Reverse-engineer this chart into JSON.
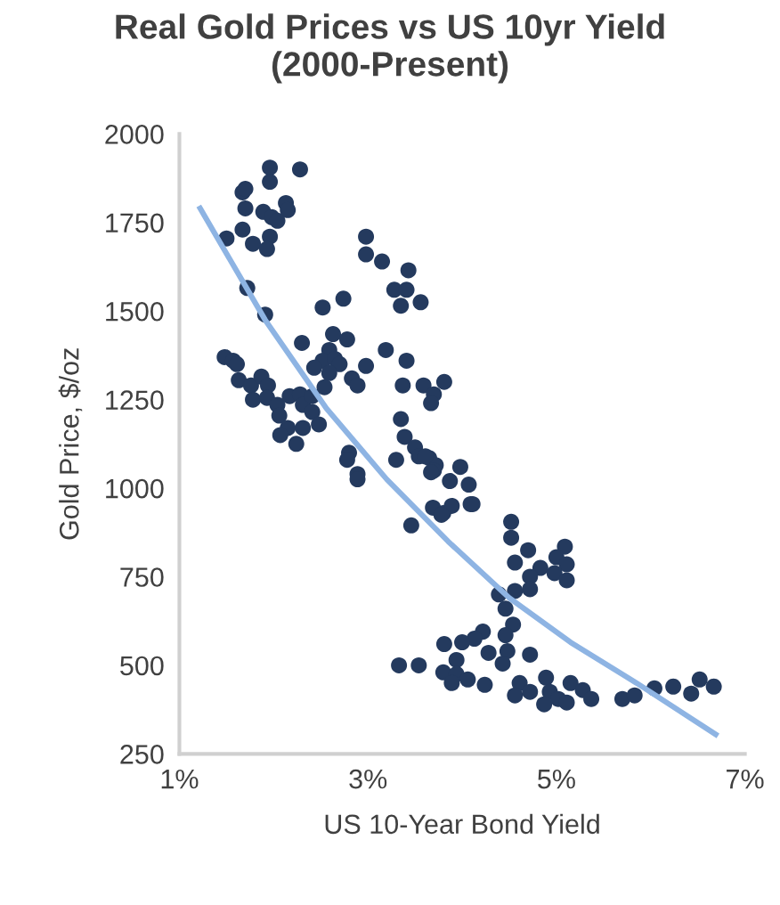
{
  "chart_data": {
    "type": "scatter",
    "title": "Real Gold Prices vs US 10yr Yield\n(2000-Present)",
    "xlabel": "US 10-Year Bond Yield",
    "ylabel": "Gold Price, $/oz",
    "xlim": [
      1,
      7
    ],
    "xticks": [
      {
        "value": 1,
        "label": "1%"
      },
      {
        "value": 3,
        "label": "3%"
      },
      {
        "value": 5,
        "label": "5%"
      },
      {
        "value": 7,
        "label": "7%"
      }
    ],
    "ylim": [
      250,
      2000
    ],
    "yticks": [
      250,
      500,
      750,
      1000,
      1250,
      1500,
      1750,
      2000
    ],
    "grid": false,
    "series": [
      {
        "color": "#243a5e",
        "marker": "circle",
        "x": [
          1.96,
          2.28,
          1.96,
          1.67,
          1.7,
          1.7,
          1.89,
          1.98,
          2.13,
          2.15,
          2.04,
          1.67,
          1.5,
          1.78,
          1.96,
          1.93,
          1.72,
          1.91,
          2.52,
          2.74,
          2.98,
          2.98,
          3.15,
          3.43,
          3.28,
          3.41,
          3.35,
          3.56,
          1.48,
          1.57,
          1.61,
          1.63,
          1.76,
          1.87,
          1.94,
          1.78,
          1.93,
          2.04,
          2.06,
          2.17,
          2.28,
          2.31,
          2.41,
          2.41,
          2.15,
          2.07,
          2.31,
          2.24,
          2.48,
          2.3,
          2.63,
          2.78,
          2.59,
          2.52,
          2.43,
          2.65,
          2.7,
          2.59,
          2.54,
          2.83,
          2.89,
          2.98,
          3.19,
          3.41,
          3.37,
          3.59,
          3.81,
          3.7,
          3.35,
          3.39,
          3.5,
          3.54,
          3.65,
          3.72,
          3.7,
          3.98,
          3.3,
          2.8,
          2.78,
          2.89,
          3.67,
          3.61,
          3.67,
          3.87,
          4.07,
          3.69,
          3.8,
          3.89,
          4.11,
          4.52,
          2.89,
          4.09,
          3.78,
          3.46,
          4.52,
          4.7,
          4.56,
          5.09,
          5.0,
          5.11,
          4.83,
          4.98,
          5.11,
          4.72,
          4.72,
          4.56,
          4.39,
          4.46,
          4.54,
          4.46,
          4.48,
          4.22,
          4.13,
          4.0,
          3.81,
          4.28,
          4.72,
          3.94,
          3.8,
          3.94,
          3.89,
          4.06,
          3.33,
          3.54,
          4.24,
          4.43,
          4.61,
          4.56,
          4.72,
          4.89,
          4.93,
          4.87,
          5.02,
          5.15,
          5.11,
          5.28,
          5.37,
          5.7,
          5.83,
          6.04,
          6.24,
          6.43,
          6.52,
          6.67
        ],
        "values": [
          1905,
          1900,
          1865,
          1835,
          1845,
          1790,
          1780,
          1765,
          1805,
          1785,
          1755,
          1730,
          1705,
          1690,
          1710,
          1675,
          1565,
          1490,
          1510,
          1535,
          1710,
          1660,
          1640,
          1615,
          1560,
          1560,
          1515,
          1525,
          1370,
          1360,
          1350,
          1305,
          1290,
          1315,
          1290,
          1250,
          1255,
          1235,
          1205,
          1260,
          1265,
          1235,
          1215,
          1260,
          1170,
          1150,
          1170,
          1125,
          1180,
          1410,
          1435,
          1420,
          1390,
          1360,
          1340,
          1365,
          1350,
          1325,
          1285,
          1310,
          1290,
          1345,
          1390,
          1360,
          1290,
          1290,
          1300,
          1265,
          1195,
          1145,
          1115,
          1090,
          1085,
          1065,
          1050,
          1060,
          1080,
          1100,
          1080,
          1040,
          1240,
          1090,
          1045,
          1020,
          1010,
          945,
          930,
          950,
          955,
          905,
          1025,
          955,
          925,
          895,
          860,
          825,
          790,
          835,
          805,
          785,
          775,
          760,
          740,
          750,
          715,
          710,
          700,
          660,
          615,
          585,
          540,
          595,
          575,
          565,
          560,
          535,
          530,
          515,
          480,
          475,
          450,
          460,
          500,
          500,
          445,
          505,
          450,
          415,
          425,
          465,
          425,
          390,
          405,
          450,
          395,
          430,
          405,
          405,
          415,
          435,
          440,
          420,
          460,
          440
        ]
      },
      {
        "type": "line",
        "color": "#8eb4e3",
        "marker": "none",
        "line_style": "solid",
        "x": [
          1.22,
          1.91,
          2.56,
          3.2,
          3.85,
          4.5,
          5.15,
          5.85,
          6.69
        ],
        "values": [
          1790,
          1475,
          1225,
          1025,
          850,
          690,
          565,
          450,
          305
        ]
      }
    ]
  }
}
